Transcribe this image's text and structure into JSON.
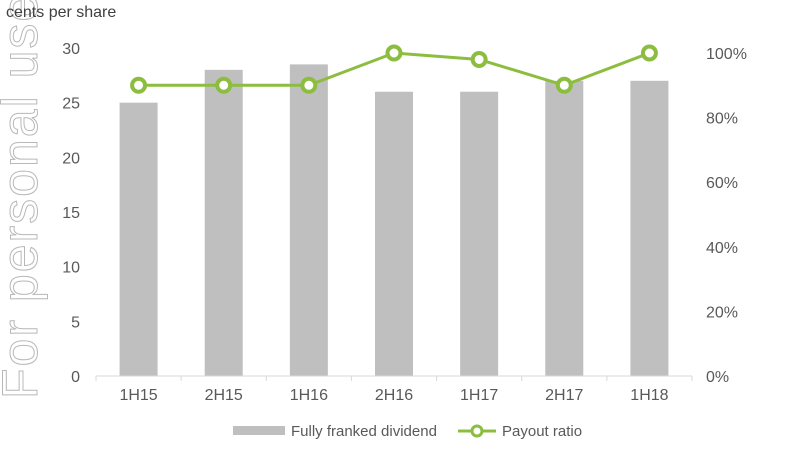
{
  "watermark_text": "For personal use",
  "chart_data": {
    "type": "bar",
    "ylabel": "cents per share",
    "categories": [
      "1H15",
      "2H15",
      "1H16",
      "2H16",
      "1H17",
      "2H17",
      "1H18"
    ],
    "ylim": [
      0,
      30
    ],
    "y_ticks": [
      "0",
      "5",
      "10",
      "15",
      "20",
      "25",
      "30"
    ],
    "y2lim": [
      0,
      100
    ],
    "y2_ticks": [
      "0%",
      "20%",
      "40%",
      "60%",
      "80%",
      "100%"
    ],
    "series": [
      {
        "name": "Fully franked dividend",
        "type": "bar",
        "axis": "left",
        "color": "#bfbfbf",
        "values": [
          25,
          28,
          28.5,
          26,
          26,
          27,
          27
        ]
      },
      {
        "name": "Payout ratio",
        "type": "line",
        "axis": "right",
        "color": "#8cbd3f",
        "values": [
          90,
          90,
          90,
          100,
          98,
          90,
          100
        ]
      }
    ],
    "legend_position": "bottom",
    "grid": false
  }
}
